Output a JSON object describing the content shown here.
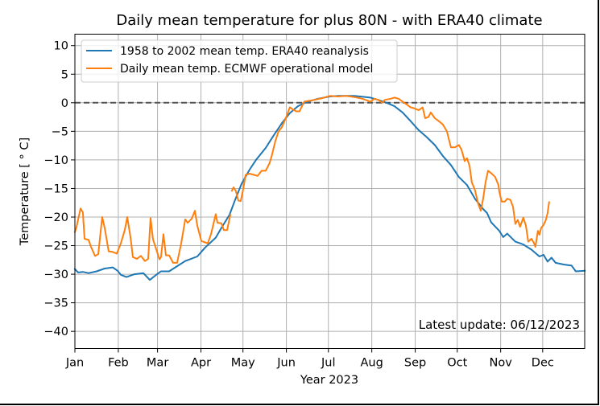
{
  "chart_data": {
    "type": "line",
    "title": "Daily mean temperature for plus 80N - with ERA40 climate",
    "xlabel": "Year 2023",
    "ylabel": "Temperature [$^\\circ$C]",
    "ylabel_display": "Temperature [ ° C]",
    "xlim": [
      0,
      364
    ],
    "ylim": [
      -43,
      12
    ],
    "grid": true,
    "legend_position": "top-left",
    "x_ticks": [
      {
        "day": 0,
        "label": "Jan"
      },
      {
        "day": 31,
        "label": "Feb"
      },
      {
        "day": 59,
        "label": "Mar"
      },
      {
        "day": 90,
        "label": "Apr"
      },
      {
        "day": 120,
        "label": "May"
      },
      {
        "day": 151,
        "label": "Jun"
      },
      {
        "day": 181,
        "label": "Jul"
      },
      {
        "day": 212,
        "label": "Aug"
      },
      {
        "day": 243,
        "label": "Sep"
      },
      {
        "day": 273,
        "label": "Oct"
      },
      {
        "day": 304,
        "label": "Nov"
      },
      {
        "day": 334,
        "label": "Dec"
      }
    ],
    "y_ticks": [
      {
        "value": 10,
        "label": "10"
      },
      {
        "value": 5,
        "label": "5"
      },
      {
        "value": 0,
        "label": "0"
      },
      {
        "value": -5,
        "label": "−5"
      },
      {
        "value": -10,
        "label": "−10"
      },
      {
        "value": -15,
        "label": "−15"
      },
      {
        "value": -20,
        "label": "−20"
      },
      {
        "value": -25,
        "label": "−25"
      },
      {
        "value": -30,
        "label": "−30"
      },
      {
        "value": -35,
        "label": "−35"
      },
      {
        "value": -40,
        "label": "−40"
      }
    ],
    "reference_line": {
      "value": 0,
      "style": "dashed",
      "color": "#555555"
    },
    "annotation": "Latest update: 06/12/2023",
    "series": [
      {
        "name": "1958 to 2002 mean temp. ERA40 reanalysis",
        "color": "#1f77b4",
        "segments": [
          [
            [
              0,
              -29.1
            ],
            [
              2.3,
              -29.7
            ],
            [
              5.7,
              -29.6
            ],
            [
              9.8,
              -29.8
            ],
            [
              15.5,
              -29.5
            ],
            [
              21.3,
              -29.0
            ],
            [
              27,
              -28.8
            ],
            [
              30.5,
              -29.4
            ],
            [
              32.8,
              -30.1
            ],
            [
              36.8,
              -30.5
            ],
            [
              42.5,
              -30.0
            ],
            [
              48.9,
              -29.8
            ],
            [
              53.5,
              -31.0
            ],
            [
              58.6,
              -30.0
            ],
            [
              61.5,
              -29.5
            ],
            [
              67.3,
              -29.5
            ],
            [
              73,
              -28.6
            ],
            [
              78.8,
              -27.7
            ],
            [
              87.4,
              -26.9
            ],
            [
              93.1,
              -25.3
            ],
            [
              100.6,
              -23.6
            ],
            [
              104.6,
              -21.9
            ],
            [
              110.4,
              -19.6
            ],
            [
              114.4,
              -17.0
            ],
            [
              119,
              -14.2
            ],
            [
              124.7,
              -11.7
            ],
            [
              129.3,
              -10.0
            ],
            [
              136.2,
              -7.9
            ],
            [
              142,
              -5.7
            ],
            [
              147.7,
              -3.6
            ],
            [
              153.5,
              -1.8
            ],
            [
              159.2,
              -0.6
            ],
            [
              165,
              0.1
            ],
            [
              173.6,
              0.7
            ],
            [
              182.2,
              1.1
            ],
            [
              188,
              1.2
            ],
            [
              199.5,
              1.2
            ],
            [
              211,
              0.9
            ],
            [
              216.7,
              0.5
            ],
            [
              222.5,
              0.0
            ],
            [
              228.2,
              -0.6
            ],
            [
              234,
              -1.7
            ],
            [
              239.7,
              -3.2
            ],
            [
              245.5,
              -4.8
            ],
            [
              251.2,
              -6.0
            ],
            [
              257,
              -7.4
            ],
            [
              262.7,
              -9.3
            ],
            [
              268.5,
              -10.9
            ],
            [
              274.2,
              -13.0
            ],
            [
              280,
              -14.4
            ],
            [
              285.7,
              -16.8
            ],
            [
              291.5,
              -18.6
            ],
            [
              294.3,
              -19.3
            ],
            [
              297.2,
              -20.9
            ],
            [
              303,
              -22.4
            ],
            [
              305.8,
              -23.5
            ],
            [
              308.7,
              -22.9
            ],
            [
              314.5,
              -24.3
            ],
            [
              320.2,
              -24.8
            ],
            [
              326,
              -25.7
            ],
            [
              331.7,
              -26.9
            ],
            [
              334.6,
              -26.6
            ],
            [
              337.5,
              -27.8
            ],
            [
              340.3,
              -27.1
            ],
            [
              343.2,
              -28.0
            ],
            [
              349,
              -28.3
            ],
            [
              354.7,
              -28.5
            ],
            [
              357.6,
              -29.5
            ],
            [
              364,
              -29.4
            ]
          ]
        ]
      },
      {
        "name": "Daily mean temp. ECMWF operational model",
        "color": "#ff7f0e",
        "segments": [
          [
            [
              0,
              -22.6
            ],
            [
              1.1,
              -21.8
            ],
            [
              4,
              -18.5
            ],
            [
              5.7,
              -19.2
            ],
            [
              6.9,
              -23.8
            ],
            [
              9.8,
              -24.0
            ],
            [
              11.5,
              -25.2
            ],
            [
              14.4,
              -26.8
            ],
            [
              16.7,
              -26.5
            ],
            [
              19.5,
              -20.0
            ],
            [
              21.3,
              -21.9
            ],
            [
              24.1,
              -26.0
            ],
            [
              27,
              -26.1
            ],
            [
              29.9,
              -26.4
            ],
            [
              32.8,
              -24.6
            ],
            [
              35.6,
              -22.3
            ],
            [
              37.4,
              -20.0
            ],
            [
              39.7,
              -23.5
            ],
            [
              41.4,
              -27.0
            ],
            [
              44.3,
              -27.3
            ],
            [
              47.1,
              -26.8
            ],
            [
              50,
              -27.7
            ],
            [
              52.3,
              -27.3
            ],
            [
              54,
              -20.2
            ],
            [
              55.8,
              -23.9
            ],
            [
              60.4,
              -27.4
            ],
            [
              61.5,
              -27.0
            ],
            [
              63.2,
              -23.0
            ],
            [
              65,
              -26.7
            ],
            [
              67.3,
              -26.7
            ],
            [
              70.1,
              -28.0
            ],
            [
              73,
              -28.0
            ],
            [
              75.9,
              -24.6
            ],
            [
              78.8,
              -20.4
            ],
            [
              80.5,
              -21.0
            ],
            [
              83.4,
              -20.3
            ],
            [
              85.7,
              -18.9
            ],
            [
              87.4,
              -21.5
            ],
            [
              90.3,
              -24.2
            ],
            [
              94.9,
              -24.6
            ],
            [
              97.2,
              -23.0
            ],
            [
              100.6,
              -19.5
            ],
            [
              101.8,
              -21.0
            ],
            [
              104.6,
              -21.1
            ],
            [
              106.4,
              -22.3
            ],
            [
              108.7,
              -22.3
            ],
            [
              111,
              -19.6
            ]
          ],
          [
            [
              112.1,
              -15.4
            ],
            [
              113.3,
              -14.8
            ],
            [
              115,
              -15.5
            ],
            [
              116.7,
              -17.1
            ],
            [
              118.4,
              -17.2
            ],
            [
              120.2,
              -15.1
            ],
            [
              121.9,
              -12.6
            ],
            [
              124.7,
              -12.4
            ],
            [
              127.6,
              -12.6
            ],
            [
              130.5,
              -12.8
            ],
            [
              133.3,
              -11.9
            ],
            [
              136.2,
              -11.9
            ],
            [
              139.1,
              -10.5
            ],
            [
              140.8,
              -9.0
            ],
            [
              143.1,
              -6.7
            ],
            [
              145.4,
              -5.0
            ],
            [
              147.7,
              -4.3
            ],
            [
              150.6,
              -2.7
            ],
            [
              153.5,
              -0.8
            ],
            [
              155.8,
              -1.2
            ],
            [
              158.1,
              -1.5
            ],
            [
              160.4,
              -1.5
            ],
            [
              162.1,
              -0.6
            ],
            [
              163.8,
              0.2
            ],
            [
              170.7,
              0.5
            ],
            [
              176.5,
              0.8
            ],
            [
              182.2,
              1.2
            ],
            [
              188,
              1.1
            ],
            [
              193.7,
              1.2
            ],
            [
              199.5,
              1.0
            ],
            [
              205.2,
              0.7
            ],
            [
              211,
              0.2
            ],
            [
              213.9,
              0.7
            ],
            [
              216.7,
              0.5
            ],
            [
              219.6,
              0.0
            ],
            [
              221.3,
              0.5
            ],
            [
              225.4,
              0.7
            ],
            [
              228.2,
              0.9
            ],
            [
              231.1,
              0.7
            ],
            [
              234,
              0.2
            ],
            [
              236.9,
              -0.3
            ],
            [
              239.7,
              -0.8
            ],
            [
              242.6,
              -1.0
            ],
            [
              245.5,
              -1.3
            ],
            [
              248.3,
              -0.8
            ],
            [
              250.1,
              -2.7
            ],
            [
              252.4,
              -2.5
            ],
            [
              254.1,
              -1.7
            ],
            [
              257,
              -2.7
            ],
            [
              259.8,
              -3.2
            ],
            [
              262.7,
              -3.8
            ],
            [
              265.6,
              -5.0
            ],
            [
              268.5,
              -7.8
            ],
            [
              271.3,
              -7.8
            ],
            [
              274.2,
              -7.4
            ],
            [
              276,
              -8.2
            ],
            [
              278.3,
              -10.2
            ],
            [
              280,
              -9.7
            ],
            [
              281.8,
              -11.1
            ],
            [
              283.4,
              -13.9
            ],
            [
              285.7,
              -15.3
            ],
            [
              288,
              -17.7
            ],
            [
              289.8,
              -18.9
            ],
            [
              291.5,
              -16.8
            ],
            [
              293.2,
              -13.9
            ],
            [
              295,
              -11.9
            ],
            [
              297.2,
              -12.3
            ],
            [
              300.1,
              -13.0
            ],
            [
              302.4,
              -14.4
            ],
            [
              303,
              -15.5
            ],
            [
              304.7,
              -17.3
            ],
            [
              307,
              -17.3
            ],
            [
              308.7,
              -16.8
            ],
            [
              311,
              -17.0
            ],
            [
              312.8,
              -18.2
            ],
            [
              314.5,
              -21.2
            ],
            [
              316.2,
              -20.5
            ],
            [
              317.9,
              -21.7
            ],
            [
              320.2,
              -20.1
            ],
            [
              322,
              -21.5
            ],
            [
              323.7,
              -24.3
            ],
            [
              326,
              -23.8
            ],
            [
              327.7,
              -24.5
            ],
            [
              328.8,
              -25.2
            ],
            [
              330.6,
              -22.4
            ],
            [
              331.7,
              -23.1
            ],
            [
              332.9,
              -21.9
            ],
            [
              334.6,
              -21.4
            ],
            [
              336.3,
              -20.5
            ],
            [
              337.5,
              -19.3
            ],
            [
              338.6,
              -17.4
            ]
          ]
        ]
      }
    ]
  }
}
